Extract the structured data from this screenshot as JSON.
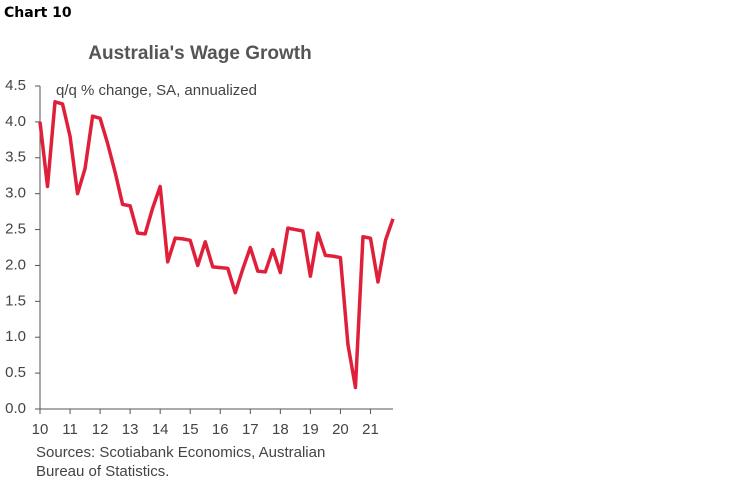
{
  "chart_label": "Chart 10",
  "chart_data": {
    "type": "line",
    "title": "Australia's Wage Growth",
    "annotation": "q/q % change, SA, annualized",
    "source": "Sources: Scotiabank Economics, Australian Bureau of Statistics.",
    "x": [
      10,
      10.25,
      10.5,
      10.75,
      11,
      11.25,
      11.5,
      11.75,
      12,
      12.25,
      12.5,
      12.75,
      13,
      13.25,
      13.5,
      13.75,
      14,
      14.25,
      14.5,
      14.75,
      15,
      15.25,
      15.5,
      15.75,
      16,
      16.25,
      16.5,
      16.75,
      17,
      17.25,
      17.5,
      17.75,
      18,
      18.25,
      18.5,
      18.75,
      19,
      19.25,
      19.5,
      19.75,
      20,
      20.25,
      20.5,
      20.75,
      21,
      21.25,
      21.5,
      21.75
    ],
    "series": [
      {
        "color": "#e0203a",
        "values": [
          4.0,
          3.1,
          4.28,
          4.25,
          3.8,
          3.0,
          3.35,
          4.08,
          4.05,
          3.7,
          3.3,
          2.85,
          2.83,
          2.45,
          2.44,
          2.8,
          3.1,
          2.05,
          2.38,
          2.37,
          2.35,
          2.0,
          2.33,
          1.98,
          1.97,
          1.96,
          1.62,
          1.95,
          2.25,
          1.92,
          1.91,
          2.22,
          1.9,
          2.52,
          2.5,
          2.48,
          1.85,
          2.45,
          2.14,
          2.13,
          2.11,
          0.9,
          0.3,
          2.4,
          2.38,
          1.77,
          2.35,
          2.65
        ]
      }
    ],
    "xlim": [
      10,
      21.75
    ],
    "xticks": [
      10,
      11,
      12,
      13,
      14,
      15,
      16,
      17,
      18,
      19,
      20,
      21
    ],
    "ylim": [
      0,
      4.5
    ],
    "yticks": [
      {
        "value": 0,
        "label": "0.0"
      },
      0.5,
      {
        "value": 1,
        "label": "1.0"
      },
      1.5,
      {
        "value": 2,
        "label": "2.0"
      },
      2.5,
      {
        "value": 3,
        "label": "3.0"
      },
      3.5,
      {
        "value": 4,
        "label": "4.0"
      },
      4.5
    ],
    "grid": false
  }
}
